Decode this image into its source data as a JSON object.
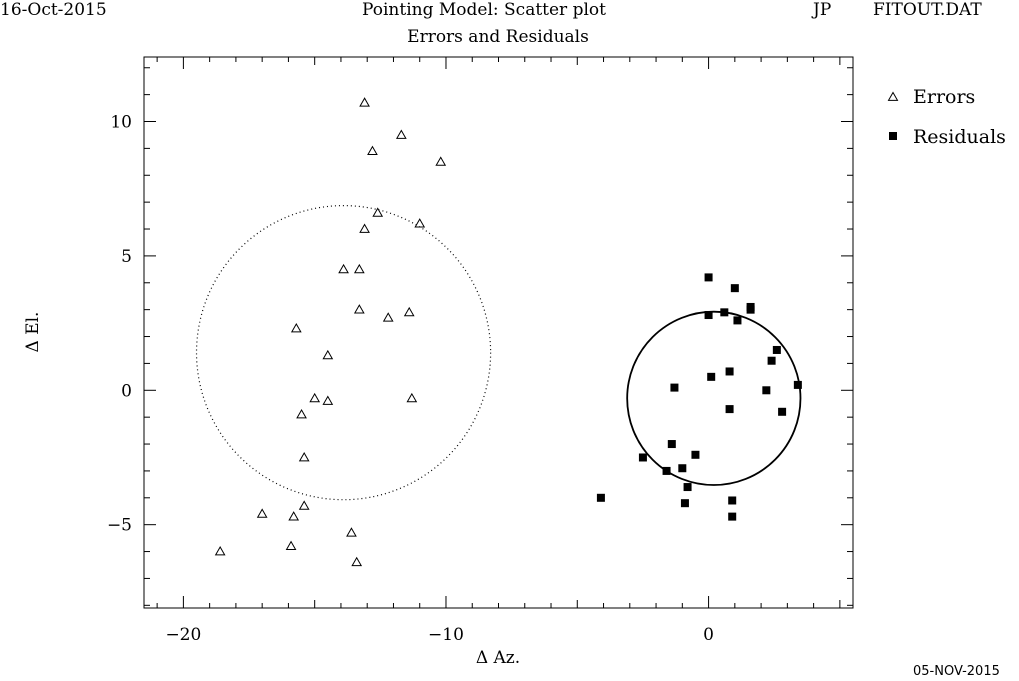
{
  "header": {
    "date": "16-Oct-2015",
    "title": "Pointing Model: Scatter plot",
    "initials": "JP",
    "file": "FITOUT.DAT"
  },
  "footer": {
    "date": "05-NOV-2015"
  },
  "chart_data": {
    "type": "scatter",
    "title": "Errors and Residuals",
    "xlabel": "Δ Az.",
    "ylabel": "Δ El.",
    "xlim": [
      -21.5,
      5.5
    ],
    "ylim": [
      -8.1,
      12.4
    ],
    "xticks": [
      -20,
      -10,
      0
    ],
    "yticks": [
      -5,
      0,
      5,
      10
    ],
    "legend_position": "top-right, outside plot",
    "series": [
      {
        "name": "Errors",
        "marker": "open-triangle",
        "points": [
          [
            -13.1,
            10.7
          ],
          [
            -11.7,
            9.5
          ],
          [
            -12.8,
            8.9
          ],
          [
            -10.2,
            8.5
          ],
          [
            -12.6,
            6.6
          ],
          [
            -11.0,
            6.2
          ],
          [
            -13.1,
            6.0
          ],
          [
            -13.9,
            4.5
          ],
          [
            -13.3,
            4.5
          ],
          [
            -13.3,
            3.0
          ],
          [
            -12.2,
            2.7
          ],
          [
            -11.4,
            2.9
          ],
          [
            -15.7,
            2.3
          ],
          [
            -14.5,
            1.3
          ],
          [
            -15.0,
            -0.3
          ],
          [
            -14.5,
            -0.4
          ],
          [
            -15.5,
            -0.9
          ],
          [
            -11.3,
            -0.3
          ],
          [
            -15.4,
            -2.5
          ],
          [
            -17.0,
            -4.6
          ],
          [
            -15.8,
            -4.7
          ],
          [
            -15.4,
            -4.3
          ],
          [
            -13.6,
            -5.3
          ],
          [
            -15.9,
            -5.8
          ],
          [
            -18.6,
            -6.0
          ],
          [
            -13.4,
            -6.4
          ]
        ]
      },
      {
        "name": "Residuals",
        "marker": "filled-square",
        "points": [
          [
            0.0,
            4.2
          ],
          [
            1.0,
            3.8
          ],
          [
            1.6,
            3.0
          ],
          [
            1.6,
            3.1
          ],
          [
            0.0,
            2.8
          ],
          [
            0.6,
            2.9
          ],
          [
            1.1,
            2.6
          ],
          [
            2.6,
            1.5
          ],
          [
            2.4,
            1.1
          ],
          [
            0.1,
            0.5
          ],
          [
            0.8,
            0.7
          ],
          [
            3.4,
            0.2
          ],
          [
            2.2,
            0.0
          ],
          [
            -1.3,
            0.1
          ],
          [
            0.8,
            -0.7
          ],
          [
            2.8,
            -0.8
          ],
          [
            -1.4,
            -2.0
          ],
          [
            -2.5,
            -2.5
          ],
          [
            -0.5,
            -2.4
          ],
          [
            -1.6,
            -3.0
          ],
          [
            -1.0,
            -2.9
          ],
          [
            -0.8,
            -3.6
          ],
          [
            -4.1,
            -4.0
          ],
          [
            -0.9,
            -4.2
          ],
          [
            0.9,
            -4.1
          ],
          [
            0.9,
            -4.7
          ]
        ]
      }
    ],
    "circles": [
      {
        "of": "Errors",
        "style": "dotted",
        "center": [
          -13.9,
          1.4
        ],
        "radius": 5.6
      },
      {
        "of": "Residuals",
        "style": "solid",
        "center": [
          0.2,
          -0.3
        ],
        "radius": 3.3
      }
    ]
  }
}
